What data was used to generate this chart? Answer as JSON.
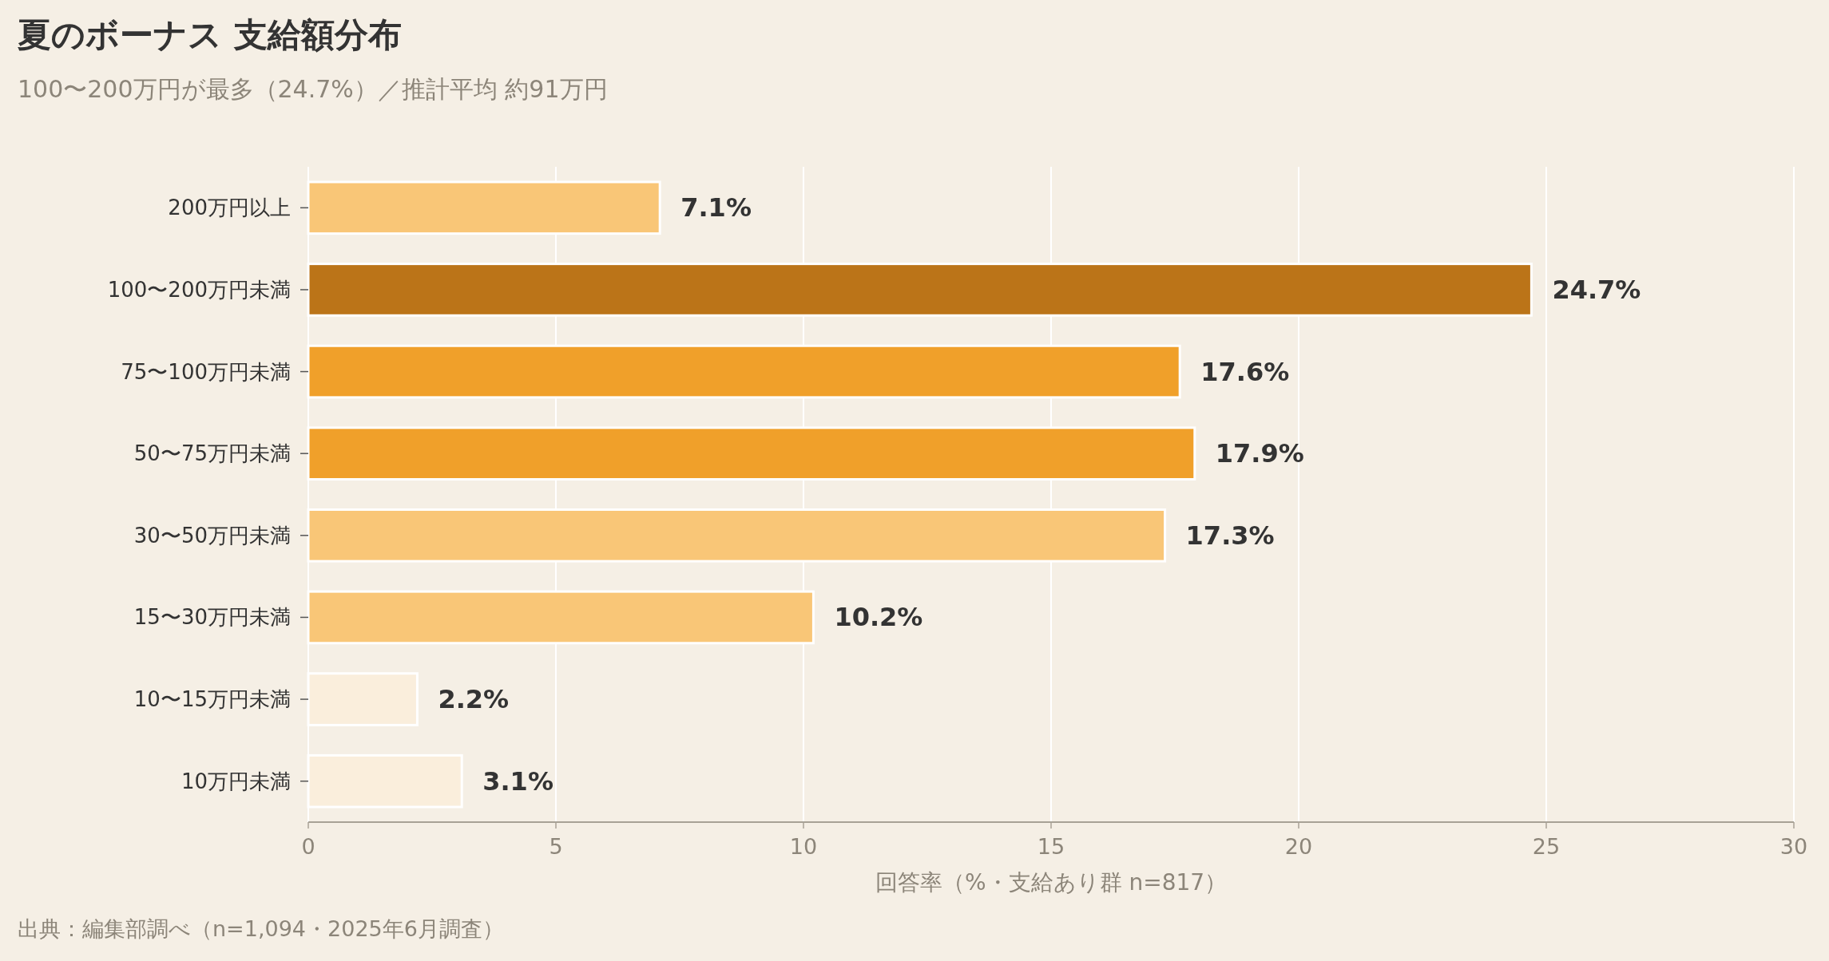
{
  "chart_data": {
    "type": "bar",
    "orientation": "horizontal",
    "title": "夏のボーナス 支給額分布",
    "subtitle": "100〜200万円が最多（24.7%）／推計平均 約91万円",
    "xlabel": "回答率（%・支給あり群 n=817）",
    "categories": [
      "200万円以上",
      "100〜200万円未満",
      "75〜100万円未満",
      "50〜75万円未満",
      "30〜50万円未満",
      "15〜30万円未満",
      "10〜15万円未満",
      "10万円未満"
    ],
    "values": [
      7.1,
      24.7,
      17.6,
      17.9,
      17.3,
      10.2,
      2.2,
      3.1
    ],
    "colors": [
      "#f9c677",
      "#bb7418",
      "#f0a02a",
      "#f0a02a",
      "#f9c677",
      "#f9c677",
      "#faeedc",
      "#faeedc"
    ],
    "value_labels": [
      "7.1%",
      "24.7%",
      "17.6%",
      "17.9%",
      "17.3%",
      "10.2%",
      "2.2%",
      "3.1%"
    ],
    "xlim": [
      0,
      30
    ],
    "xticks": [
      0,
      5,
      10,
      15,
      20,
      25,
      30
    ],
    "grid": "x",
    "annotations": [
      "出典：編集部調べ（n=1,094・2025年6月調査）"
    ]
  }
}
